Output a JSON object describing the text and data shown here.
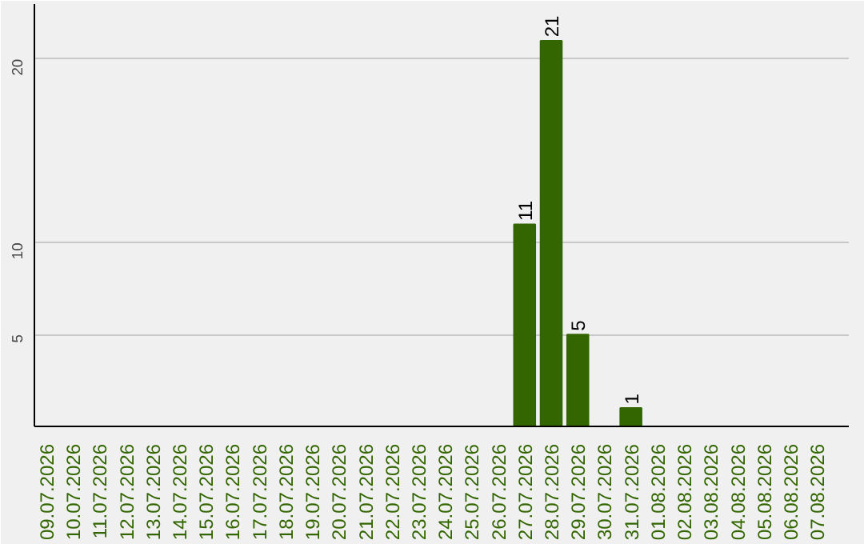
{
  "chart_data": {
    "type": "bar",
    "categories": [
      "09.07.2026",
      "10.07.2026",
      "11.07.2026",
      "12.07.2026",
      "13.07.2026",
      "14.07.2026",
      "15.07.2026",
      "16.07.2026",
      "17.07.2026",
      "18.07.2026",
      "19.07.2026",
      "20.07.2026",
      "21.07.2026",
      "22.07.2026",
      "23.07.2026",
      "24.07.2026",
      "25.07.2026",
      "26.07.2026",
      "27.07.2026",
      "28.07.2026",
      "29.07.2026",
      "30.07.2026",
      "31.07.2026",
      "01.08.2026",
      "02.08.2026",
      "03.08.2026",
      "04.08.2026",
      "05.08.2026",
      "06.08.2026",
      "07.08.2026"
    ],
    "values": [
      null,
      null,
      null,
      null,
      null,
      null,
      null,
      null,
      null,
      null,
      null,
      null,
      null,
      null,
      null,
      null,
      null,
      null,
      11,
      21,
      5,
      null,
      1,
      null,
      null,
      null,
      null,
      null,
      null,
      null
    ],
    "color": "#336600",
    "ylim": [
      0,
      23
    ],
    "yticks": [
      5,
      10,
      20
    ],
    "grid": "y",
    "data_labels": true
  }
}
